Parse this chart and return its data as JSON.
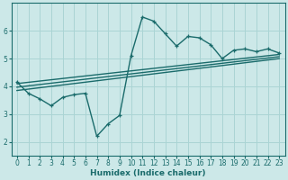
{
  "xlabel": "Humidex (Indice chaleur)",
  "ylabel": "",
  "bg_color": "#cce8e8",
  "line_color": "#1a6b6b",
  "grid_color": "#aad4d4",
  "xlim": [
    -0.5,
    23.5
  ],
  "ylim": [
    1.5,
    7.0
  ],
  "yticks": [
    2,
    3,
    4,
    5,
    6
  ],
  "xticks": [
    0,
    1,
    2,
    3,
    4,
    5,
    6,
    7,
    8,
    9,
    10,
    11,
    12,
    13,
    14,
    15,
    16,
    17,
    18,
    19,
    20,
    21,
    22,
    23
  ],
  "line1_x": [
    0,
    1,
    2,
    3,
    4,
    5,
    6,
    7,
    8,
    9,
    10,
    11,
    12,
    13,
    14,
    15,
    16,
    17,
    18,
    19,
    20,
    21,
    22,
    23
  ],
  "line1_y": [
    4.15,
    3.75,
    3.55,
    3.3,
    3.6,
    3.7,
    3.75,
    2.2,
    2.65,
    2.95,
    5.1,
    6.5,
    6.35,
    5.9,
    5.45,
    5.8,
    5.75,
    5.5,
    5.0,
    5.3,
    5.35,
    5.25,
    5.35,
    5.2
  ],
  "line2_x": [
    0,
    23
  ],
  "line2_y": [
    4.1,
    5.15
  ],
  "line3_x": [
    0,
    23
  ],
  "line3_y": [
    3.85,
    5.0
  ],
  "line4_x": [
    0,
    23
  ],
  "line4_y": [
    3.97,
    5.07
  ]
}
